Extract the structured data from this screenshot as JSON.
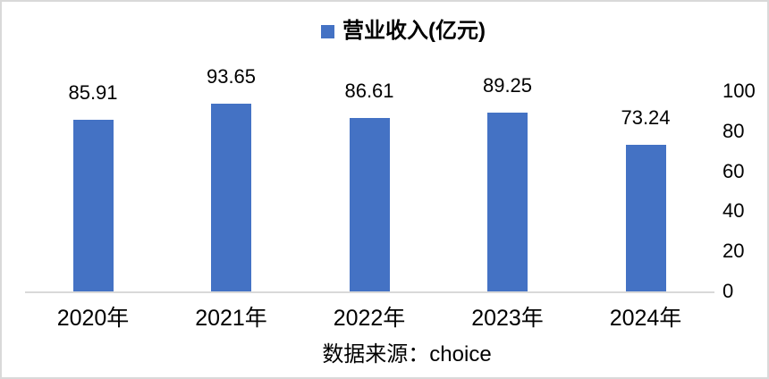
{
  "legend": {
    "label": "营业收入(亿元)"
  },
  "footer": {
    "source": "数据来源：choice"
  },
  "colors": {
    "bar": "#4472C4",
    "axis_line": "#d9d9d9",
    "text": "#000000",
    "frame_border": "#d9d9d9"
  },
  "chart_data": {
    "type": "bar",
    "title": "营业收入(亿元)",
    "series_name": "营业收入(亿元)",
    "categories": [
      "2020年",
      "2021年",
      "2022年",
      "2023年",
      "2024年"
    ],
    "values": [
      85.91,
      93.65,
      86.61,
      89.25,
      73.24
    ],
    "data_labels": [
      "85.91",
      "93.65",
      "86.61",
      "89.25",
      "73.24"
    ],
    "xlabel": "",
    "ylabel": "",
    "ylim": [
      0,
      100
    ],
    "yticks": [
      0,
      20,
      40,
      60,
      80,
      100
    ],
    "yaxis_side": "right",
    "grid": false,
    "legend_position": "top-center",
    "data_labels_shown": true,
    "source_note": "数据来源：choice"
  }
}
